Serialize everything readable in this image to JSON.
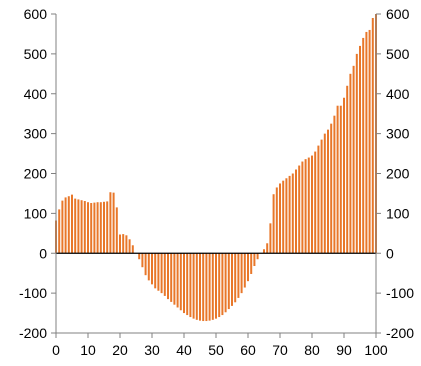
{
  "chart_data": {
    "type": "bar",
    "title": "",
    "xlabel": "",
    "ylabel": "",
    "xlim": [
      0,
      100
    ],
    "ylim": [
      -200,
      600
    ],
    "grid": false,
    "legend": "none",
    "bar_color": "#E8772A",
    "zero_line_color": "#000000",
    "axis_color": "#808080",
    "x_ticks": [
      0,
      10,
      20,
      30,
      40,
      50,
      60,
      70,
      80,
      90,
      100
    ],
    "y_ticks": [
      -200,
      -100,
      0,
      100,
      200,
      300,
      400,
      500,
      600
    ],
    "y_tick_labels": [
      "-200",
      "-100",
      "0",
      "100",
      "200",
      "300",
      "400",
      "500",
      "600"
    ],
    "x_tick_labels": [
      "0",
      "10",
      "20",
      "30",
      "40",
      "50",
      "60",
      "70",
      "80",
      "90",
      "100"
    ],
    "series": [
      {
        "x": [
          0,
          1,
          2,
          3,
          4,
          5,
          6,
          7,
          8,
          9,
          10,
          11,
          12,
          13,
          14,
          15,
          16,
          17,
          18,
          19,
          20,
          21,
          22,
          23,
          24,
          25,
          26,
          27,
          28,
          29,
          30,
          31,
          32,
          33,
          34,
          35,
          36,
          37,
          38,
          39,
          40,
          41,
          42,
          43,
          44,
          45,
          46,
          47,
          48,
          49,
          50,
          51,
          52,
          53,
          54,
          55,
          56,
          57,
          58,
          59,
          60,
          61,
          62,
          63,
          64,
          65,
          66,
          67,
          68,
          69,
          70,
          71,
          72,
          73,
          74,
          75,
          76,
          77,
          78,
          79,
          80,
          81,
          82,
          83,
          84,
          85,
          86,
          87,
          88,
          89,
          90,
          91,
          92,
          93,
          94,
          95,
          96,
          97,
          98,
          99,
          100
        ],
        "values": [
          82,
          110,
          132,
          140,
          143,
          147,
          137,
          135,
          133,
          131,
          128,
          126,
          127,
          128,
          128,
          129,
          130,
          153,
          152,
          115,
          47,
          48,
          45,
          35,
          20,
          0,
          -15,
          -35,
          -55,
          -68,
          -78,
          -88,
          -94,
          -100,
          -107,
          -115,
          -122,
          -129,
          -136,
          -143,
          -150,
          -155,
          -160,
          -164,
          -167,
          -169,
          -170,
          -170,
          -169,
          -167,
          -164,
          -160,
          -155,
          -148,
          -140,
          -132,
          -123,
          -112,
          -100,
          -86,
          -70,
          -52,
          -32,
          -15,
          0,
          10,
          25,
          75,
          148,
          165,
          175,
          182,
          188,
          194,
          200,
          210,
          220,
          230,
          236,
          240,
          245,
          255,
          270,
          285,
          300,
          310,
          325,
          345,
          370,
          370,
          390,
          420,
          450,
          470,
          500,
          520,
          540,
          555,
          560,
          590,
          600
        ]
      }
    ]
  }
}
